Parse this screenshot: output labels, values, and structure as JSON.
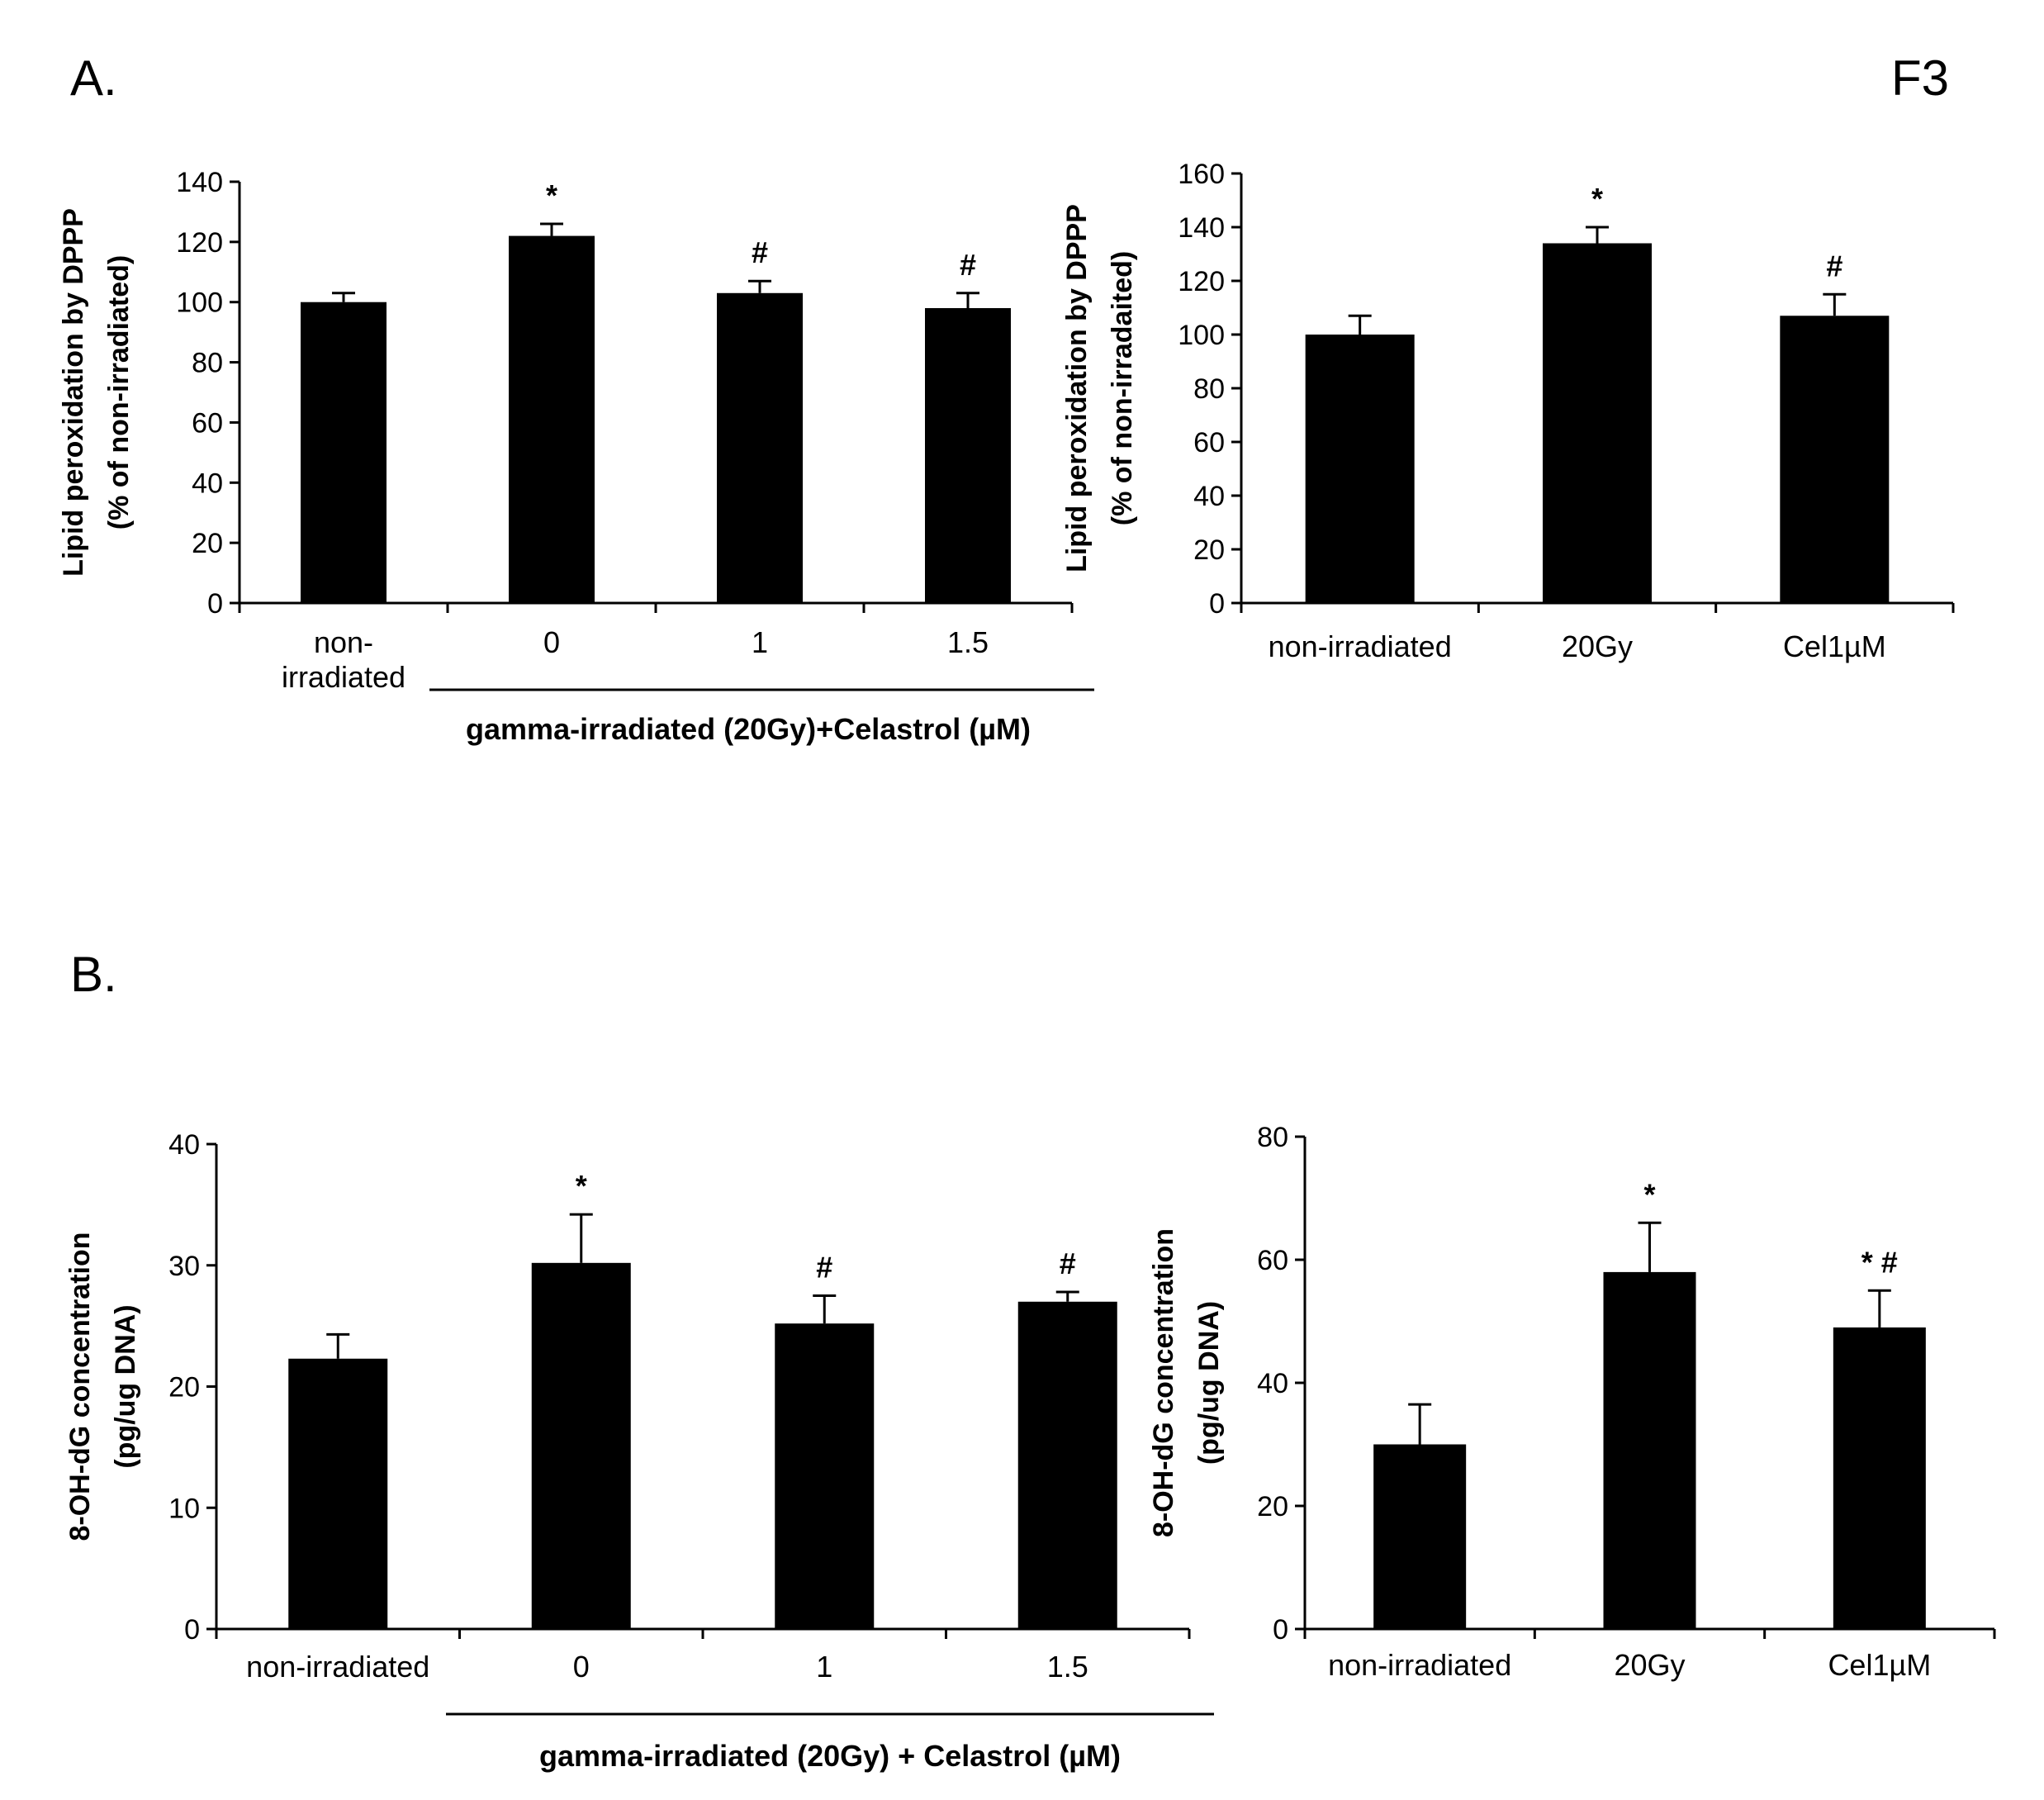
{
  "figure": {
    "id": "F3",
    "panel_a": "A.",
    "panel_b": "B."
  },
  "chart_data": [
    {
      "type": "bar",
      "panel": "A",
      "ylabel_line1": "Lipid peroxidation by DPPP",
      "ylabel_line2": "(% of non-irradiated)",
      "ylim": [
        0,
        140
      ],
      "yticks": [
        0,
        20,
        40,
        60,
        80,
        100,
        120,
        140
      ],
      "categories": [
        "non-irradiated",
        "0",
        "1",
        "1.5"
      ],
      "category_lines": [
        [
          "non-",
          "irradiated"
        ],
        [
          "0"
        ],
        [
          "1"
        ],
        [
          "1.5"
        ]
      ],
      "values": [
        100,
        122,
        103,
        98
      ],
      "errors": [
        3,
        4,
        4,
        5
      ],
      "markers": [
        "",
        "*",
        "#",
        "#"
      ],
      "group_label": "gamma-irradiated (20Gy)+Celastrol (µM)",
      "group_span": [
        1,
        3
      ]
    },
    {
      "type": "bar",
      "panel": "A",
      "ylabel_line1": "Lipid peroxidation by DPPP",
      "ylabel_line2": "(% of non-irradaited)",
      "ylim": [
        0,
        160
      ],
      "yticks": [
        0,
        20,
        40,
        60,
        80,
        100,
        120,
        140,
        160
      ],
      "categories": [
        "non-irradiated",
        "20Gy",
        "Cel1µM"
      ],
      "category_lines": [
        [
          "non-irradiated"
        ],
        [
          "20Gy"
        ],
        [
          "Cel1µM"
        ]
      ],
      "values": [
        100,
        134,
        107
      ],
      "errors": [
        7,
        6,
        8
      ],
      "markers": [
        "",
        "*",
        "#"
      ]
    },
    {
      "type": "bar",
      "panel": "B",
      "ylabel_line1": "8-OH-dG concentration",
      "ylabel_line2": "(pg/ug DNA)",
      "ylim": [
        0,
        40
      ],
      "yticks": [
        0,
        10,
        20,
        30,
        40
      ],
      "categories": [
        "non-irradiated",
        "0",
        "1",
        "1.5"
      ],
      "category_lines": [
        [
          "non-irradiated"
        ],
        [
          "0"
        ],
        [
          "1"
        ],
        [
          "1.5"
        ]
      ],
      "values": [
        22.3,
        30.2,
        25.2,
        27.0
      ],
      "errors": [
        2.0,
        4.0,
        2.3,
        0.8
      ],
      "markers": [
        "",
        "*",
        "#",
        "#"
      ],
      "group_label": "gamma-irradiated (20Gy) + Celastrol (µM)",
      "group_span": [
        1,
        3
      ]
    },
    {
      "type": "bar",
      "panel": "B",
      "ylabel_line1": "8-OH-dG concentration",
      "ylabel_line2": "(pg/ug DNA)",
      "ylim": [
        0,
        80
      ],
      "yticks": [
        0,
        20,
        40,
        60,
        80
      ],
      "categories": [
        "non-irradiated",
        "20Gy",
        "Cel1µM"
      ],
      "category_lines": [
        [
          "non-irradiated"
        ],
        [
          "20Gy"
        ],
        [
          "Cel1µM"
        ]
      ],
      "values": [
        30,
        58,
        49
      ],
      "errors": [
        6.5,
        8,
        6
      ],
      "markers": [
        "",
        "*",
        "* #"
      ]
    }
  ]
}
